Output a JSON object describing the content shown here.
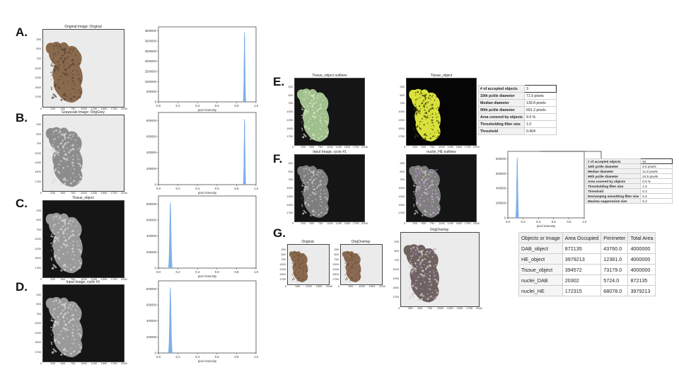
{
  "panels": {
    "A": {
      "letter": "A.",
      "title": "Original Image: Original"
    },
    "B": {
      "letter": "B.",
      "title": "Grayscale Image: OrigGrey"
    },
    "C": {
      "letter": "C.",
      "title": "Tissue_object"
    },
    "D": {
      "letter": "D.",
      "title": "Input Image, cycle #1"
    },
    "E": {
      "letter": "E.",
      "title_left": "Tissue_object outlines",
      "title_right": "Tissue_object"
    },
    "F": {
      "letter": "F.",
      "title_left": "Input Image, cycle #1",
      "title_right": "nuclei_HE outlines"
    },
    "G": {
      "letter": "G.",
      "title_a": "Original",
      "title_b": "OrigOverlay",
      "title_c": "OrigOverlay"
    }
  },
  "image_axes": {
    "y_ticks": [
      "0",
      "250",
      "500",
      "750",
      "1000",
      "1250",
      "1500",
      "1750"
    ],
    "x_ticks": [
      "0",
      "250",
      "500",
      "750",
      "1000",
      "1250",
      "1500",
      "1750",
      "2000"
    ],
    "x_ticks_small": [
      "0",
      "500",
      "1000",
      "1500",
      "2000"
    ]
  },
  "chart_data": [
    {
      "type": "bar",
      "name": "A",
      "xlabel": "pixel intensity",
      "xlim": [
        0.0,
        1.0
      ],
      "ylim": [
        0,
        3700000
      ],
      "x_ticks": [
        "0.0",
        "0.2",
        "0.4",
        "0.6",
        "0.8",
        "1.0"
      ],
      "y_ticks": [
        "0",
        "500000",
        "1000000",
        "1500000",
        "2000000",
        "2500000",
        "3000000",
        "3500000"
      ],
      "peak_center": 0.88,
      "peak_height": 3450000,
      "peak_width": 0.012,
      "color": "#7fb1ea"
    },
    {
      "type": "bar",
      "name": "B",
      "xlabel": "pixel intensity",
      "xlim": [
        0.0,
        1.0
      ],
      "ylim": [
        0,
        900000
      ],
      "x_ticks": [
        "0.0",
        "0.2",
        "0.4",
        "0.6",
        "0.8",
        "1.0"
      ],
      "y_ticks": [
        "0",
        "200000",
        "400000",
        "600000",
        "800000"
      ],
      "peak_center": 0.88,
      "peak_height": 820000,
      "peak_width": 0.012,
      "color": "#7fb1ea"
    },
    {
      "type": "bar",
      "name": "C",
      "xlabel": "pixel intensity",
      "xlim": [
        0.0,
        1.0
      ],
      "ylim": [
        0,
        900000
      ],
      "x_ticks": [
        "0.0",
        "0.2",
        "0.4",
        "0.6",
        "0.8",
        "1.0"
      ],
      "y_ticks": [
        "0",
        "200000",
        "400000",
        "600000",
        "800000"
      ],
      "peak_center": 0.12,
      "peak_height": 820000,
      "peak_width": 0.018,
      "color": "#7fb1ea"
    },
    {
      "type": "bar",
      "name": "D",
      "xlabel": "pixel intensity",
      "xlim": [
        0.0,
        1.0
      ],
      "ylim": [
        0,
        900000
      ],
      "x_ticks": [
        "0.0",
        "0.2",
        "0.4",
        "0.6",
        "0.8",
        "1.0"
      ],
      "y_ticks": [
        "0",
        "200000",
        "400000",
        "600000",
        "800000"
      ],
      "peak_center": 0.12,
      "peak_height": 820000,
      "peak_width": 0.018,
      "color": "#7fb1ea"
    },
    {
      "type": "bar",
      "name": "F",
      "xlabel": "pixel intensity",
      "xlim": [
        0.0,
        1.0
      ],
      "ylim": [
        0,
        900000
      ],
      "x_ticks": [
        "0.0",
        "0.2",
        "0.4",
        "0.6",
        "0.8",
        "1.0"
      ],
      "y_ticks": [
        "0",
        "200000",
        "400000",
        "600000",
        "800000"
      ],
      "peak_center": 0.12,
      "peak_height": 820000,
      "peak_width": 0.018,
      "color": "#7fb1ea"
    }
  ],
  "tissue_metrics": [
    {
      "label": "# of accepted objects",
      "value": "3"
    },
    {
      "label": "10th pctile diameter",
      "value": "71.5 pixels"
    },
    {
      "label": "Median diameter",
      "value": "139.8 pixels"
    },
    {
      "label": "90th pctile diameter",
      "value": "691.2 pixels"
    },
    {
      "label": "Area covered by objects",
      "value": "9.9 %"
    },
    {
      "label": "Thresholding filter size",
      "value": "1.0"
    },
    {
      "label": "Threshold",
      "value": "0.404"
    }
  ],
  "nuclei_metrics": [
    {
      "label": "# of accepted objects",
      "value": "94"
    },
    {
      "label": "10th pctile diameter",
      "value": "8.5 pixels"
    },
    {
      "label": "Median diameter",
      "value": "11.8 pixels"
    },
    {
      "label": "90th pctile diameter",
      "value": "24.5 pixels"
    },
    {
      "label": "Area covered by objects",
      "value": "0.5 %"
    },
    {
      "label": "Thresholding filter size",
      "value": "1.0"
    },
    {
      "label": "Threshold",
      "value": "0.3"
    },
    {
      "label": "Declumping smoothing filter size",
      "value": "5.4"
    },
    {
      "label": "Maxima suppression size",
      "value": "5.3"
    }
  ],
  "objects_table": {
    "headers": [
      "Objects or Image",
      "Area Occupied",
      "Perimeter",
      "Total Area"
    ],
    "rows": [
      [
        "DAB_object",
        "872135",
        "43760.0",
        "4000000"
      ],
      [
        "HE_object",
        "3979213",
        "12381.0",
        "4000000"
      ],
      [
        "Tissue_object",
        "394572",
        "73179.0",
        "4000000"
      ],
      [
        "nuclei_DAB",
        "20302",
        "5724.0",
        "872135"
      ],
      [
        "nuclei_HE",
        "172315",
        "68078.0",
        "3979213"
      ]
    ]
  },
  "colors": {
    "hist_bar": "#7fb1ea",
    "tissue_brown": "#8a6a4e",
    "outline_green": "#b9d8a6",
    "tissue_yellow": "#d9e23c",
    "dark_bg": "#151515",
    "light_bg": "#ebebeb"
  }
}
